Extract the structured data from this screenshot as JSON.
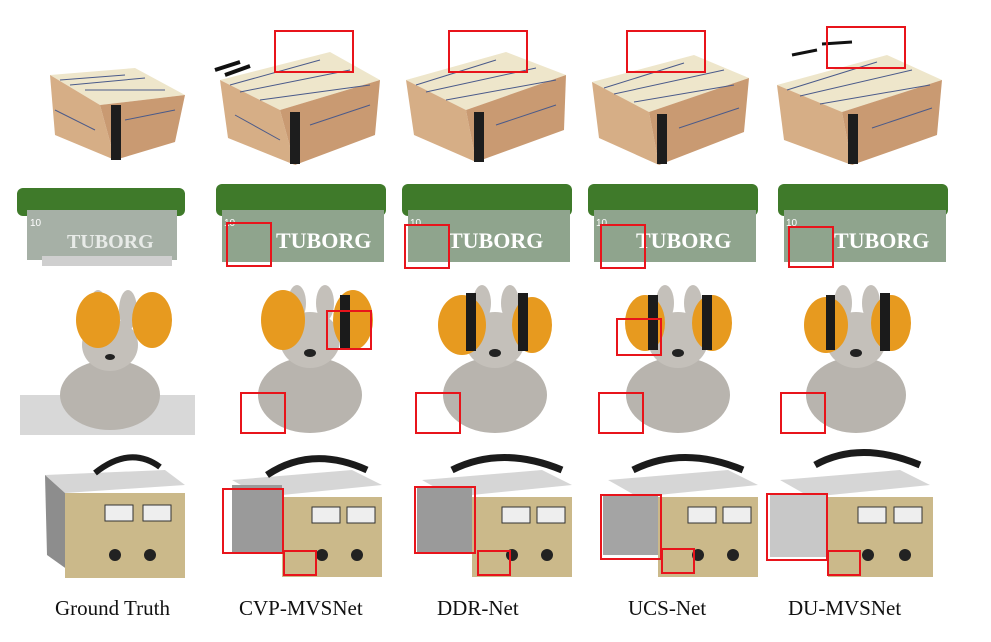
{
  "figure": {
    "columns": [
      {
        "id": "gt",
        "label": "Ground Truth"
      },
      {
        "id": "cvp",
        "label": "CVP-MVSNet"
      },
      {
        "id": "ddr",
        "label": "DDR-Net"
      },
      {
        "id": "ucs",
        "label": "UCS-Net"
      },
      {
        "id": "du",
        "label": "DU-MVSNet"
      }
    ],
    "rows": [
      "box",
      "beer-pack",
      "bunny",
      "power-supply"
    ],
    "printed_text": {
      "beer_brand": "TUBORG",
      "beer_small": "10"
    },
    "colors": {
      "highlight": "#e8141b",
      "box_top": "#efe6c9",
      "box_side": "#c99a72",
      "beer_green": "#3f7a2a",
      "bunny_gray": "#b8b4ae",
      "headphone_orange": "#e79a1f",
      "device_beige": "#cbb98a",
      "device_gray": "#8d8d8d"
    }
  }
}
